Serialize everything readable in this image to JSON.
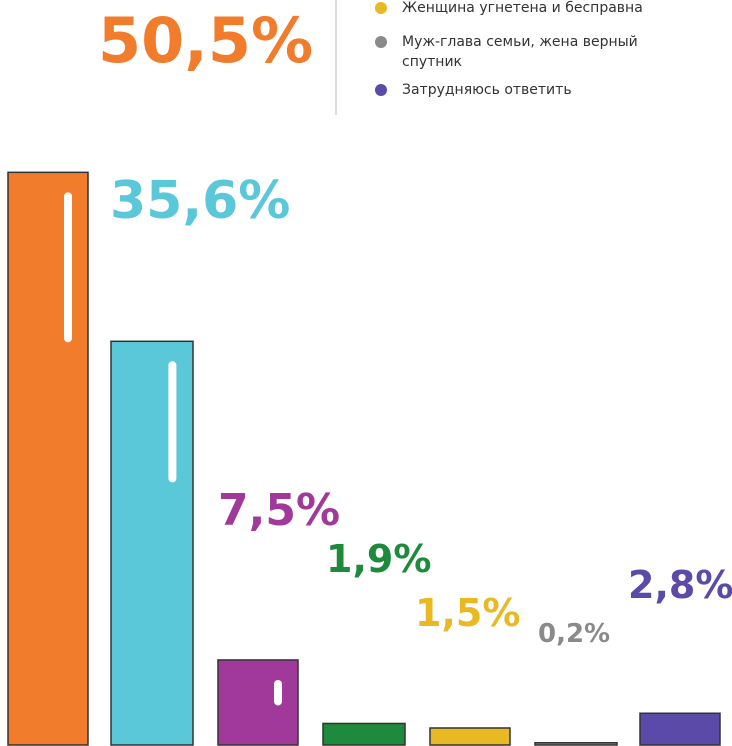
{
  "chart_data": {
    "type": "bar",
    "categories": [
      null,
      null,
      null,
      null,
      null,
      null,
      null
    ],
    "values": [
      50.5,
      35.6,
      7.5,
      1.9,
      1.5,
      0.2,
      2.8
    ],
    "value_labels": [
      "50,5%",
      "35,6%",
      "7,5%",
      "1,9%",
      "1,5%",
      "0,2%",
      "2,8%"
    ],
    "colors": [
      "#f07c2c",
      "#5bc8d9",
      "#a0399a",
      "#1e8a3c",
      "#e8b923",
      "#8a8a8a",
      "#5b4aa8"
    ],
    "legend": [
      {
        "name": "Женщина угнетена и бесправна",
        "color": "#e8b923"
      },
      {
        "name": "Муж-глава семьи, жена верный спутник",
        "color": "#8a8a8a"
      },
      {
        "name": "Затрудняюсь ответить",
        "color": "#5b4aa8"
      }
    ]
  }
}
